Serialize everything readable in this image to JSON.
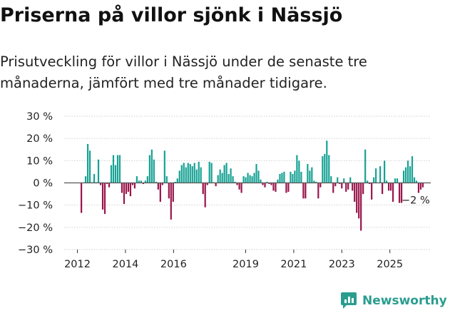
{
  "title": "Priserna på villor sjönk i Nässjö",
  "subtitle": "Prisutveckling för villor i Nässjö under de senaste tre månaderna, jämfört med tre månader tidigare.",
  "brand": {
    "name": "Newsworthy",
    "icon": "newsworthy-chart-icon",
    "color": "#2a9d8f"
  },
  "colors": {
    "positive": "#17a294",
    "negative": "#99154b",
    "grid": "#d0d0d0",
    "zero_line": "#555555"
  },
  "chart_data": {
    "type": "bar",
    "title": "Priserna på villor sjönk i Nässjö",
    "subtitle": "Prisutveckling för villor i Nässjö under de senaste tre månaderna, jämfört med tre månader tidigare.",
    "xlabel": "",
    "ylabel": "",
    "x_ticks": [
      {
        "label": "2012",
        "value": 2012.0
      },
      {
        "label": "2014",
        "value": 2014.0
      },
      {
        "label": "2016",
        "value": 2016.0
      },
      {
        "label": "2019",
        "value": 2019.0
      },
      {
        "label": "2021",
        "value": 2021.0
      },
      {
        "label": "2023",
        "value": 2023.0
      },
      {
        "label": "2025",
        "value": 2025.0
      }
    ],
    "y_ticks": [
      {
        "label": "30 %",
        "value": 30
      },
      {
        "label": "20 %",
        "value": 20
      },
      {
        "label": "10 %",
        "value": 10
      },
      {
        "label": "0 %",
        "value": 0
      },
      {
        "label": "−10 %",
        "value": -10
      },
      {
        "label": "−20 %",
        "value": -20
      },
      {
        "label": "−30 %",
        "value": -30
      }
    ],
    "ylim": [
      -30,
      30
    ],
    "xlim": [
      2011.45,
      2026.7
    ],
    "grid": true,
    "annotation": {
      "label": "−2 %",
      "value": -2
    },
    "series": [
      {
        "values": [
          -13.5,
          0.2,
          3,
          17.5,
          14.5,
          0.3,
          4,
          0.3,
          10.5,
          -1,
          -12,
          -14,
          -0.5,
          -2,
          8,
          12.5,
          8,
          12.5,
          12.5,
          -4.5,
          -9.5,
          -5,
          -4,
          -6,
          -1,
          -2.5,
          3,
          1,
          1,
          -0.5,
          1,
          3,
          12.5,
          15,
          10.5,
          0.5,
          -3,
          -8.5,
          -1,
          14.5,
          3,
          -7,
          -16.5,
          -8.5,
          0.5,
          2,
          5.5,
          8,
          9,
          7,
          9,
          8.5,
          7.5,
          9,
          6,
          9.5,
          7,
          -5,
          -11,
          -1,
          9.5,
          9,
          0.3,
          -1.5,
          3.5,
          6,
          4.5,
          8,
          9,
          4,
          6.5,
          3,
          0.5,
          -1,
          -3,
          -4.5,
          3,
          2.5,
          4.5,
          3.5,
          3,
          4.5,
          8.5,
          5.5,
          1.5,
          -1,
          -2,
          0.5,
          -0.5,
          -1,
          -3.5,
          -4,
          1.5,
          4,
          4.5,
          5,
          -4.5,
          -4,
          5,
          4,
          5.5,
          12.5,
          10,
          5,
          -7,
          -7,
          8.5,
          5.5,
          7,
          1,
          0.5,
          -7,
          -2,
          12,
          13,
          19,
          12.5,
          3,
          -4.5,
          -1.5,
          2.5,
          -0.5,
          -2.5,
          2,
          -4,
          -3,
          2.5,
          -3.5,
          -8.5,
          -13.5,
          -16,
          -21.5,
          -5,
          15,
          1,
          -0.5,
          -7.5,
          2.5,
          6.5,
          0.2,
          7.5,
          -5,
          10,
          1,
          -3.5,
          -3.5,
          -8.5,
          2,
          2,
          -9,
          -9,
          5.5,
          7,
          10,
          7.5,
          12,
          2.5,
          1,
          -4.5,
          -3,
          -2
        ]
      }
    ]
  }
}
